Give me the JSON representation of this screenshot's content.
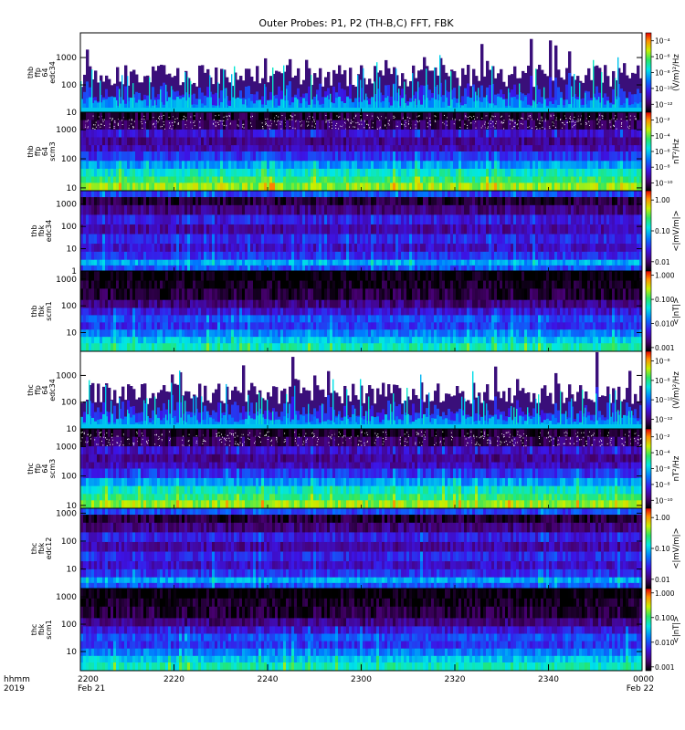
{
  "chart_data": {
    "type": "heatmap",
    "title": "Outer Probes: P1, P2 (TH-B,C) FFT, FBK",
    "time_axis": {
      "corner_label": [
        "hhmm",
        "2019"
      ],
      "ticks": [
        {
          "value": "2200",
          "date": "Feb 21"
        },
        {
          "value": "2220",
          "date": ""
        },
        {
          "value": "2240",
          "date": ""
        },
        {
          "value": "2300",
          "date": ""
        },
        {
          "value": "2320",
          "date": ""
        },
        {
          "value": "2340",
          "date": ""
        },
        {
          "value": "0000",
          "date": "Feb 22"
        }
      ]
    },
    "panels": [
      {
        "ylabel": [
          "thb",
          "ffp",
          "64",
          "edc34"
        ],
        "yticks": [
          "1000",
          "100",
          "10"
        ],
        "ylim": [
          10,
          8000
        ],
        "colorbar": {
          "label": "(V/m)²/Hz",
          "ticks": [
            "10⁻⁴",
            "10⁻⁶",
            "10⁻⁸",
            "10⁻¹⁰",
            "10⁻¹²"
          ],
          "scale": "log",
          "range": [
            1e-13,
            0.001
          ]
        },
        "style": "spiky"
      },
      {
        "ylabel": [
          "thb",
          "ffp",
          "64",
          "scm3"
        ],
        "yticks": [
          "1000",
          "100",
          "10"
        ],
        "ylim": [
          8,
          4000
        ],
        "colorbar": {
          "label": "nT²/Hz",
          "ticks": [
            "10⁻²",
            "10⁻⁴",
            "10⁻⁶",
            "10⁻⁸",
            "10⁻¹⁰"
          ],
          "scale": "log",
          "range": [
            1e-11,
            0.1
          ]
        },
        "style": "scm"
      },
      {
        "ylabel": [
          "thb",
          "fbk",
          "edc34"
        ],
        "yticks": [
          "1000",
          "100",
          "10",
          "1"
        ],
        "ylim": [
          1,
          4000
        ],
        "colorbar": {
          "label": "<|mV/m|>",
          "ticks": [
            "1.00",
            "0.10",
            "0.01"
          ],
          "scale": "log",
          "range": [
            0.005,
            2
          ]
        },
        "style": "fbk"
      },
      {
        "ylabel": [
          "thb",
          "fbk",
          "scm1"
        ],
        "yticks": [
          "1000",
          "100",
          "10"
        ],
        "ylim": [
          2,
          2000
        ],
        "colorbar": {
          "label": "<|nT|>",
          "ticks": [
            "1.000",
            "0.100",
            "0.010",
            "0.001"
          ],
          "scale": "log",
          "range": [
            0.0007,
            1.5
          ]
        },
        "style": "fbkscm"
      },
      {
        "ylabel": [
          "thc",
          "ffp",
          "64",
          "edc34"
        ],
        "yticks": [
          "1000",
          "100",
          "10"
        ],
        "ylim": [
          10,
          8000
        ],
        "colorbar": {
          "label": "(V/m)²/Hz",
          "ticks": [
            "10⁻⁶",
            "10⁻⁸",
            "10⁻¹⁰",
            "10⁻¹²"
          ],
          "scale": "log",
          "range": [
            1e-13,
            1e-05
          ]
        },
        "style": "spiky"
      },
      {
        "ylabel": [
          "thc",
          "ffp",
          "64",
          "scm3"
        ],
        "yticks": [
          "1000",
          "100",
          "10"
        ],
        "ylim": [
          8,
          4000
        ],
        "colorbar": {
          "label": "nT²/Hz",
          "ticks": [
            "10⁻²",
            "10⁻⁴",
            "10⁻⁶",
            "10⁻⁸",
            "10⁻¹⁰"
          ],
          "scale": "log",
          "range": [
            1e-11,
            0.1
          ]
        },
        "style": "scm"
      },
      {
        "ylabel": [
          "thc",
          "fbk",
          "edc12"
        ],
        "yticks": [
          "1000",
          "100",
          "10"
        ],
        "ylim": [
          2,
          1500
        ],
        "colorbar": {
          "label": "<|mV/m|>",
          "ticks": [
            "1.00",
            "0.10",
            "0.01"
          ],
          "scale": "log",
          "range": [
            0.005,
            2
          ]
        },
        "style": "fbk"
      },
      {
        "ylabel": [
          "thc",
          "fbk",
          "scm1"
        ],
        "yticks": [
          "1000",
          "100",
          "10"
        ],
        "ylim": [
          2,
          2000
        ],
        "colorbar": {
          "label": "<|nT|>",
          "ticks": [
            "1.000",
            "0.100",
            "0.010",
            "0.001"
          ],
          "scale": "log",
          "range": [
            0.0007,
            1.5
          ]
        },
        "style": "fbkscm"
      }
    ]
  }
}
